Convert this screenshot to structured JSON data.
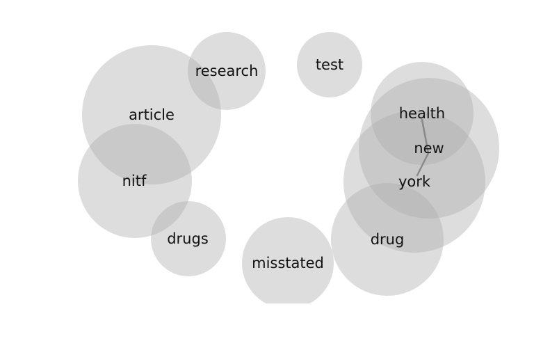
{
  "diagram": {
    "terms": [
      {
        "id": "article",
        "label": "article"
      },
      {
        "id": "research",
        "label": "research"
      },
      {
        "id": "test",
        "label": "test"
      },
      {
        "id": "nitf",
        "label": "nitf"
      },
      {
        "id": "drugs",
        "label": "drugs"
      },
      {
        "id": "misstated",
        "label": "misstated"
      },
      {
        "id": "drug",
        "label": "drug"
      },
      {
        "id": "york",
        "label": "york"
      },
      {
        "id": "new",
        "label": "new"
      },
      {
        "id": "health",
        "label": "health"
      }
    ],
    "links": [
      {
        "from": "health",
        "to": "new"
      },
      {
        "from": "new",
        "to": "york"
      }
    ]
  }
}
